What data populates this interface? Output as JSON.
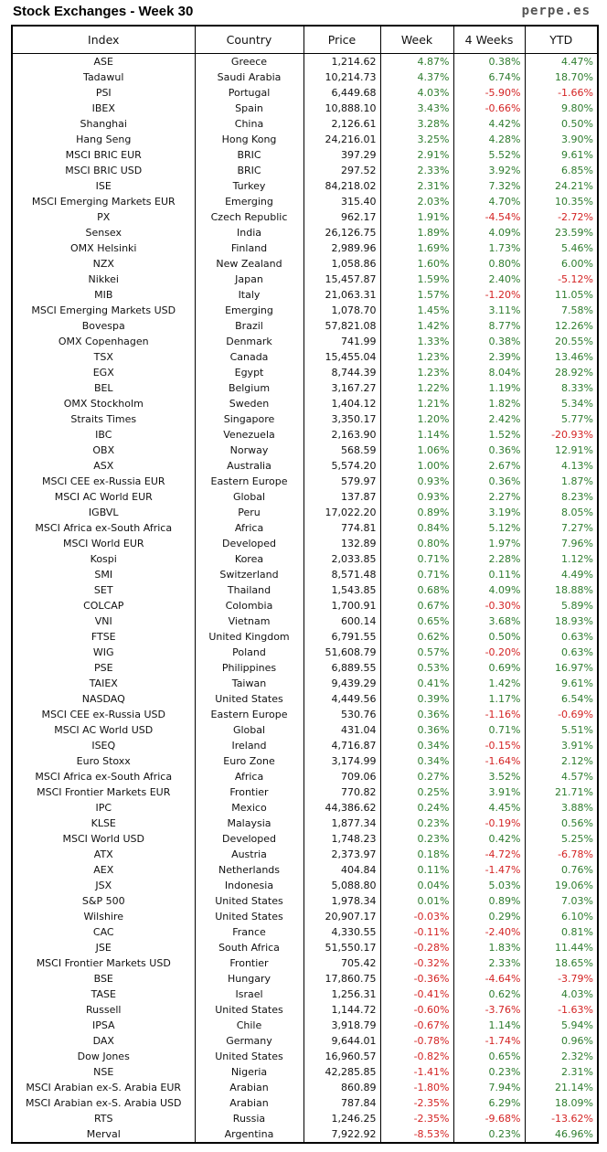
{
  "header": {
    "title": "Stock Exchanges - Week 30",
    "source": "perpe.es"
  },
  "colors": {
    "positive": "#2f7d2f",
    "negative": "#d42424"
  },
  "columns": [
    "Index",
    "Country",
    "Price",
    "Week",
    "4 Weeks",
    "YTD"
  ],
  "rows": [
    [
      "ASE",
      "Greece",
      "1,214.62",
      "4.87%",
      "0.38%",
      "4.47%"
    ],
    [
      "Tadawul",
      "Saudi Arabia",
      "10,214.73",
      "4.37%",
      "6.74%",
      "18.70%"
    ],
    [
      "PSI",
      "Portugal",
      "6,449.68",
      "4.03%",
      "-5.90%",
      "-1.66%"
    ],
    [
      "IBEX",
      "Spain",
      "10,888.10",
      "3.43%",
      "-0.66%",
      "9.80%"
    ],
    [
      "Shanghai",
      "China",
      "2,126.61",
      "3.28%",
      "4.42%",
      "0.50%"
    ],
    [
      "Hang Seng",
      "Hong Kong",
      "24,216.01",
      "3.25%",
      "4.28%",
      "3.90%"
    ],
    [
      "MSCI BRIC EUR",
      "BRIC",
      "397.29",
      "2.91%",
      "5.52%",
      "9.61%"
    ],
    [
      "MSCI BRIC USD",
      "BRIC",
      "297.52",
      "2.33%",
      "3.92%",
      "6.85%"
    ],
    [
      "ISE",
      "Turkey",
      "84,218.02",
      "2.31%",
      "7.32%",
      "24.21%"
    ],
    [
      "MSCI Emerging Markets EUR",
      "Emerging",
      "315.40",
      "2.03%",
      "4.70%",
      "10.35%"
    ],
    [
      "PX",
      "Czech Republic",
      "962.17",
      "1.91%",
      "-4.54%",
      "-2.72%"
    ],
    [
      "Sensex",
      "India",
      "26,126.75",
      "1.89%",
      "4.09%",
      "23.59%"
    ],
    [
      "OMX Helsinki",
      "Finland",
      "2,989.96",
      "1.69%",
      "1.73%",
      "5.46%"
    ],
    [
      "NZX",
      "New Zealand",
      "1,058.86",
      "1.60%",
      "0.80%",
      "6.00%"
    ],
    [
      "Nikkei",
      "Japan",
      "15,457.87",
      "1.59%",
      "2.40%",
      "-5.12%"
    ],
    [
      "MIB",
      "Italy",
      "21,063.31",
      "1.57%",
      "-1.20%",
      "11.05%"
    ],
    [
      "MSCI Emerging Markets USD",
      "Emerging",
      "1,078.70",
      "1.45%",
      "3.11%",
      "7.58%"
    ],
    [
      "Bovespa",
      "Brazil",
      "57,821.08",
      "1.42%",
      "8.77%",
      "12.26%"
    ],
    [
      "OMX Copenhagen",
      "Denmark",
      "741.99",
      "1.33%",
      "0.38%",
      "20.55%"
    ],
    [
      "TSX",
      "Canada",
      "15,455.04",
      "1.23%",
      "2.39%",
      "13.46%"
    ],
    [
      "EGX",
      "Egypt",
      "8,744.39",
      "1.23%",
      "8.04%",
      "28.92%"
    ],
    [
      "BEL",
      "Belgium",
      "3,167.27",
      "1.22%",
      "1.19%",
      "8.33%"
    ],
    [
      "OMX Stockholm",
      "Sweden",
      "1,404.12",
      "1.21%",
      "1.82%",
      "5.34%"
    ],
    [
      "Straits Times",
      "Singapore",
      "3,350.17",
      "1.20%",
      "2.42%",
      "5.77%"
    ],
    [
      "IBC",
      "Venezuela",
      "2,163.90",
      "1.14%",
      "1.52%",
      "-20.93%"
    ],
    [
      "OBX",
      "Norway",
      "568.59",
      "1.06%",
      "0.36%",
      "12.91%"
    ],
    [
      "ASX",
      "Australia",
      "5,574.20",
      "1.00%",
      "2.67%",
      "4.13%"
    ],
    [
      "MSCI CEE ex-Russia EUR",
      "Eastern Europe",
      "579.97",
      "0.93%",
      "0.36%",
      "1.87%"
    ],
    [
      "MSCI AC World EUR",
      "Global",
      "137.87",
      "0.93%",
      "2.27%",
      "8.23%"
    ],
    [
      "IGBVL",
      "Peru",
      "17,022.20",
      "0.89%",
      "3.19%",
      "8.05%"
    ],
    [
      "MSCI Africa ex-South Africa",
      "Africa",
      "774.81",
      "0.84%",
      "5.12%",
      "7.27%"
    ],
    [
      "MSCI World EUR",
      "Developed",
      "132.89",
      "0.80%",
      "1.97%",
      "7.96%"
    ],
    [
      "Kospi",
      "Korea",
      "2,033.85",
      "0.71%",
      "2.28%",
      "1.12%"
    ],
    [
      "SMI",
      "Switzerland",
      "8,571.48",
      "0.71%",
      "0.11%",
      "4.49%"
    ],
    [
      "SET",
      "Thailand",
      "1,543.85",
      "0.68%",
      "4.09%",
      "18.88%"
    ],
    [
      "COLCAP",
      "Colombia",
      "1,700.91",
      "0.67%",
      "-0.30%",
      "5.89%"
    ],
    [
      "VNI",
      "Vietnam",
      "600.14",
      "0.65%",
      "3.68%",
      "18.93%"
    ],
    [
      "FTSE",
      "United Kingdom",
      "6,791.55",
      "0.62%",
      "0.50%",
      "0.63%"
    ],
    [
      "WIG",
      "Poland",
      "51,608.79",
      "0.57%",
      "-0.20%",
      "0.63%"
    ],
    [
      "PSE",
      "Philippines",
      "6,889.55",
      "0.53%",
      "0.69%",
      "16.97%"
    ],
    [
      "TAIEX",
      "Taiwan",
      "9,439.29",
      "0.41%",
      "1.42%",
      "9.61%"
    ],
    [
      "NASDAQ",
      "United States",
      "4,449.56",
      "0.39%",
      "1.17%",
      "6.54%"
    ],
    [
      "MSCI CEE ex-Russia USD",
      "Eastern Europe",
      "530.76",
      "0.36%",
      "-1.16%",
      "-0.69%"
    ],
    [
      "MSCI AC World USD",
      "Global",
      "431.04",
      "0.36%",
      "0.71%",
      "5.51%"
    ],
    [
      "ISEQ",
      "Ireland",
      "4,716.87",
      "0.34%",
      "-0.15%",
      "3.91%"
    ],
    [
      "Euro Stoxx",
      "Euro Zone",
      "3,174.99",
      "0.34%",
      "-1.64%",
      "2.12%"
    ],
    [
      "MSCI Africa ex-South Africa",
      "Africa",
      "709.06",
      "0.27%",
      "3.52%",
      "4.57%"
    ],
    [
      "MSCI Frontier Markets EUR",
      "Frontier",
      "770.82",
      "0.25%",
      "3.91%",
      "21.71%"
    ],
    [
      "IPC",
      "Mexico",
      "44,386.62",
      "0.24%",
      "4.45%",
      "3.88%"
    ],
    [
      "KLSE",
      "Malaysia",
      "1,877.34",
      "0.23%",
      "-0.19%",
      "0.56%"
    ],
    [
      "MSCI World USD",
      "Developed",
      "1,748.23",
      "0.23%",
      "0.42%",
      "5.25%"
    ],
    [
      "ATX",
      "Austria",
      "2,373.97",
      "0.18%",
      "-4.72%",
      "-6.78%"
    ],
    [
      "AEX",
      "Netherlands",
      "404.84",
      "0.11%",
      "-1.47%",
      "0.76%"
    ],
    [
      "JSX",
      "Indonesia",
      "5,088.80",
      "0.04%",
      "5.03%",
      "19.06%"
    ],
    [
      "S&P 500",
      "United States",
      "1,978.34",
      "0.01%",
      "0.89%",
      "7.03%"
    ],
    [
      "Wilshire",
      "United States",
      "20,907.17",
      "-0.03%",
      "0.29%",
      "6.10%"
    ],
    [
      "CAC",
      "France",
      "4,330.55",
      "-0.11%",
      "-2.40%",
      "0.81%"
    ],
    [
      "JSE",
      "South Africa",
      "51,550.17",
      "-0.28%",
      "1.83%",
      "11.44%"
    ],
    [
      "MSCI Frontier Markets USD",
      "Frontier",
      "705.42",
      "-0.32%",
      "2.33%",
      "18.65%"
    ],
    [
      "BSE",
      "Hungary",
      "17,860.75",
      "-0.36%",
      "-4.64%",
      "-3.79%"
    ],
    [
      "TASE",
      "Israel",
      "1,256.31",
      "-0.41%",
      "0.62%",
      "4.03%"
    ],
    [
      "Russell",
      "United States",
      "1,144.72",
      "-0.60%",
      "-3.76%",
      "-1.63%"
    ],
    [
      "IPSA",
      "Chile",
      "3,918.79",
      "-0.67%",
      "1.14%",
      "5.94%"
    ],
    [
      "DAX",
      "Germany",
      "9,644.01",
      "-0.78%",
      "-1.74%",
      "0.96%"
    ],
    [
      "Dow Jones",
      "United States",
      "16,960.57",
      "-0.82%",
      "0.65%",
      "2.32%"
    ],
    [
      "NSE",
      "Nigeria",
      "42,285.85",
      "-1.41%",
      "0.23%",
      "2.31%"
    ],
    [
      "MSCI Arabian ex-S. Arabia EUR",
      "Arabian",
      "860.89",
      "-1.80%",
      "7.94%",
      "21.14%"
    ],
    [
      "MSCI Arabian ex-S. Arabia USD",
      "Arabian",
      "787.84",
      "-2.35%",
      "6.29%",
      "18.09%"
    ],
    [
      "RTS",
      "Russia",
      "1,246.25",
      "-2.35%",
      "-9.68%",
      "-13.62%"
    ],
    [
      "Merval",
      "Argentina",
      "7,922.92",
      "-8.53%",
      "0.23%",
      "46.96%"
    ]
  ]
}
